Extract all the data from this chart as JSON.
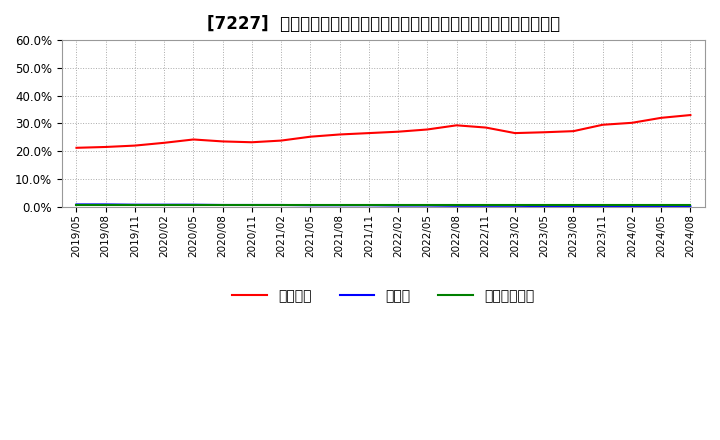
{
  "title": "[7227]  自己資本、のれん、繰延税金資産の総資産に対する比率の推移",
  "x_labels": [
    "2019/05",
    "2019/08",
    "2019/11",
    "2020/02",
    "2020/05",
    "2020/08",
    "2020/11",
    "2021/02",
    "2021/05",
    "2021/08",
    "2021/11",
    "2022/02",
    "2022/05",
    "2022/08",
    "2022/11",
    "2023/02",
    "2023/05",
    "2023/08",
    "2023/11",
    "2024/02",
    "2024/05",
    "2024/08"
  ],
  "jikoshihon": [
    0.212,
    0.215,
    0.22,
    0.23,
    0.242,
    0.235,
    0.232,
    0.238,
    0.252,
    0.26,
    0.265,
    0.27,
    0.278,
    0.293,
    0.285,
    0.265,
    0.268,
    0.272,
    0.295,
    0.302,
    0.32,
    0.33
  ],
  "noren": [
    0.008,
    0.008,
    0.007,
    0.007,
    0.007,
    0.006,
    0.006,
    0.006,
    0.005,
    0.005,
    0.005,
    0.004,
    0.004,
    0.003,
    0.003,
    0.003,
    0.002,
    0.002,
    0.002,
    0.001,
    0.001,
    0.001
  ],
  "kurinobe": [
    0.005,
    0.005,
    0.005,
    0.005,
    0.005,
    0.005,
    0.005,
    0.005,
    0.005,
    0.005,
    0.005,
    0.005,
    0.005,
    0.005,
    0.005,
    0.005,
    0.005,
    0.005,
    0.005,
    0.005,
    0.005,
    0.005
  ],
  "jikoshihon_color": "#ff0000",
  "noren_color": "#0000ff",
  "kurinobe_color": "#008000",
  "ylim": [
    0.0,
    0.6
  ],
  "yticks": [
    0.0,
    0.1,
    0.2,
    0.3,
    0.4,
    0.5,
    0.6
  ],
  "bg_color": "#ffffff",
  "plot_bg_color": "#ffffff",
  "grid_color": "#aaaaaa",
  "title_fontsize": 12,
  "legend_labels": [
    "自己資本",
    "のれん",
    "繰延税金資産"
  ]
}
